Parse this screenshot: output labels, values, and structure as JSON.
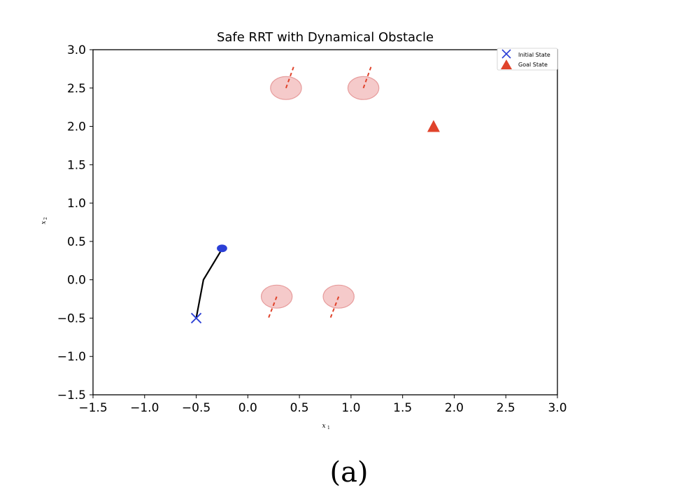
{
  "chart_data": {
    "type": "scatter",
    "title": "Safe RRT with Dynamical Obstacle",
    "xlabel": "x",
    "xlabel_sub": "1",
    "ylabel": "x",
    "ylabel_sub": "2",
    "xlim": [
      -1.5,
      3.0
    ],
    "ylim": [
      -1.5,
      3.0
    ],
    "xticks": [
      -1.5,
      -1.0,
      -0.5,
      0.0,
      0.5,
      1.0,
      1.5,
      2.0,
      2.5,
      3.0
    ],
    "yticks": [
      -1.5,
      -1.0,
      -0.5,
      0.0,
      0.5,
      1.0,
      1.5,
      2.0,
      2.5,
      3.0
    ],
    "grid": false,
    "legend_position": "top-right",
    "legend": [
      {
        "label": "Initial State",
        "marker": "x",
        "color": "#2b3fd6"
      },
      {
        "label": "Goal State",
        "marker": "triangle",
        "color": "#e0432b"
      }
    ],
    "initial_state": {
      "x": -0.5,
      "y": -0.5
    },
    "goal_state": {
      "x": 1.8,
      "y": 2.0
    },
    "path": [
      {
        "x": -0.5,
        "y": -0.5
      },
      {
        "x": -0.43,
        "y": 0.0
      },
      {
        "x": -0.25,
        "y": 0.4
      }
    ],
    "robot": {
      "x": -0.25,
      "y": 0.41,
      "rx": 0.05,
      "ry": 0.055,
      "color": "#2b3fd6"
    },
    "obstacles": [
      {
        "x": 0.37,
        "y": 2.5,
        "rx": 0.15,
        "ry": 0.15,
        "trail": [
          [
            0.37,
            2.5
          ],
          [
            0.45,
            2.8
          ]
        ]
      },
      {
        "x": 1.12,
        "y": 2.5,
        "rx": 0.15,
        "ry": 0.15,
        "trail": [
          [
            1.12,
            2.5
          ],
          [
            1.2,
            2.8
          ]
        ]
      },
      {
        "x": 0.28,
        "y": -0.22,
        "rx": 0.15,
        "ry": 0.15,
        "trail": [
          [
            0.28,
            -0.22
          ],
          [
            0.2,
            -0.5
          ]
        ]
      },
      {
        "x": 0.88,
        "y": -0.22,
        "rx": 0.15,
        "ry": 0.15,
        "trail": [
          [
            0.88,
            -0.22
          ],
          [
            0.8,
            -0.5
          ]
        ]
      }
    ],
    "obstacle_fill": "#f2b8b8",
    "obstacle_edge": "#e79c9c",
    "trail_color": "#e0432b",
    "path_color": "#000000"
  },
  "caption": "(a)"
}
